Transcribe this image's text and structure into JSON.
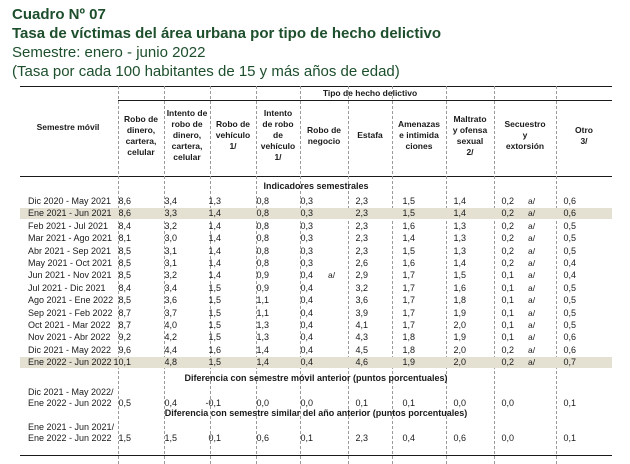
{
  "header": {
    "title": "Cuadro Nº 07",
    "subtitle": "Tasa de víctimas del área urbana por tipo de hecho delictivo",
    "semester": "Semestre: enero - junio 2022",
    "note": "(Tasa por cada 100 habitantes de 15 y más años de edad)"
  },
  "table": {
    "stub_header": "Semestre móvil",
    "group_header": "Tipo de hecho delictivo",
    "columns": [
      [
        "Robo de",
        "dinero,",
        "cartera,",
        "celular"
      ],
      [
        "Intento de",
        "robo de",
        "dinero,",
        "cartera,",
        "celular"
      ],
      [
        "Robo de",
        "vehículo",
        "1/"
      ],
      [
        "Intento",
        "de robo",
        "de",
        "vehículo",
        "1/"
      ],
      [
        "Robo de",
        "negocio"
      ],
      [
        "Estafa"
      ],
      [
        "Amenazas",
        "e intimida",
        "ciones"
      ],
      [
        "Maltrato",
        "y ofensa",
        "sexual",
        "2/"
      ],
      [
        "Secuestro",
        "y",
        "extorsión"
      ],
      [
        "Otro",
        "3/"
      ]
    ],
    "section_indicators": "Indicadores semestrales",
    "rows": [
      {
        "label": "Dic 2020 - May 2021",
        "values": [
          "8,6",
          "3,4",
          "1,3",
          "0,8",
          "0,3",
          "2,3",
          "1,5",
          "1,4",
          "0,2",
          "0,6"
        ],
        "flags": {
          "8": "a/"
        }
      },
      {
        "label": "Ene 2021 - Jun 2021",
        "values": [
          "8,6",
          "3,3",
          "1,4",
          "0,8",
          "0,3",
          "2,3",
          "1,5",
          "1,4",
          "0,2",
          "0,6"
        ],
        "flags": {
          "8": "a/"
        }
      },
      {
        "label": "Feb 2021 - Jul 2021",
        "values": [
          "8,4",
          "3,2",
          "1,4",
          "0,8",
          "0,3",
          "2,3",
          "1,6",
          "1,3",
          "0,2",
          "0,5"
        ],
        "flags": {
          "8": "a/"
        }
      },
      {
        "label": "Mar 2021 - Ago 2021",
        "values": [
          "8,1",
          "3,0",
          "1,4",
          "0,8",
          "0,3",
          "2,3",
          "1,4",
          "1,3",
          "0,2",
          "0,5"
        ],
        "flags": {
          "8": "a/"
        }
      },
      {
        "label": "Abr 2021 - Sep 2021",
        "values": [
          "8,5",
          "3,1",
          "1,4",
          "0,8",
          "0,3",
          "2,3",
          "1,5",
          "1,3",
          "0,2",
          "0,5"
        ],
        "flags": {
          "8": "a/"
        }
      },
      {
        "label": "May 2021 - Oct 2021",
        "values": [
          "8,5",
          "3,1",
          "1,4",
          "0,8",
          "0,3",
          "2,6",
          "1,6",
          "1,4",
          "0,2",
          "0,4"
        ],
        "flags": {
          "8": "a/"
        }
      },
      {
        "label": "Jun 2021 - Nov 2021",
        "values": [
          "8,5",
          "3,2",
          "1,4",
          "0,9",
          "0,4",
          "2,9",
          "1,7",
          "1,5",
          "0,1",
          "0,4"
        ],
        "flags": {
          "4": "a/",
          "8": "a/"
        }
      },
      {
        "label": "Jul 2021 - Dic 2021",
        "values": [
          "8,4",
          "3,4",
          "1,5",
          "0,9",
          "0,4",
          "3,2",
          "1,7",
          "1,6",
          "0,1",
          "0,5"
        ],
        "flags": {
          "8": "a/"
        }
      },
      {
        "label": "Ago 2021 - Ene 2022",
        "values": [
          "8,5",
          "3,6",
          "1,5",
          "1,1",
          "0,4",
          "3,6",
          "1,7",
          "1,8",
          "0,1",
          "0,5"
        ],
        "flags": {
          "8": "a/"
        }
      },
      {
        "label": "Sep 2021 - Feb 2022",
        "values": [
          "8,7",
          "3,7",
          "1,5",
          "1,1",
          "0,4",
          "3,9",
          "1,7",
          "1,9",
          "0,1",
          "0,5"
        ],
        "flags": {
          "8": "a/"
        }
      },
      {
        "label": "Oct 2021 - Mar 2022",
        "values": [
          "8,7",
          "4,0",
          "1,5",
          "1,3",
          "0,4",
          "4,1",
          "1,7",
          "2,0",
          "0,1",
          "0,5"
        ],
        "flags": {
          "8": "a/"
        }
      },
      {
        "label": "Nov 2021 - Abr 2022",
        "values": [
          "9,2",
          "4,2",
          "1,5",
          "1,3",
          "0,4",
          "4,3",
          "1,8",
          "1,9",
          "0,1",
          "0,6"
        ],
        "flags": {
          "8": "a/"
        }
      },
      {
        "label": "Dic 2021 - May 2022",
        "values": [
          "9,6",
          "4,4",
          "1,6",
          "1,4",
          "0,4",
          "4,5",
          "1,8",
          "2,0",
          "0,2",
          "0,6"
        ],
        "flags": {
          "8": "a/"
        }
      },
      {
        "label": "Ene 2022 - Jun 2022",
        "values": [
          "10,1",
          "4,8",
          "1,5",
          "1,4",
          "0,4",
          "4,6",
          "1,9",
          "2,0",
          "0,2",
          "0,7"
        ],
        "flags": {
          "8": "a/"
        }
      }
    ],
    "section_diff_prev": "Diferencia con semestre móvil anterior (puntos porcentuales)",
    "diff_prev": {
      "label1": "Dic 2021 - May 2022/",
      "label2": "Ene 2022 - Jun 2022",
      "values": [
        "0,5",
        "0,4",
        "-0,1",
        "0,0",
        "0,0",
        "0,1",
        "0,1",
        "0,0",
        "0,0",
        "0,1"
      ]
    },
    "section_diff_year": "Diferencia con semestre similar del año anterior (puntos porcentuales)",
    "diff_year": {
      "label1": "Ene 2021 - Jun 2021/",
      "label2": "Ene 2022 - Jun 2022",
      "values": [
        "1,5",
        "1,5",
        "0,1",
        "0,6",
        "0,1",
        "2,3",
        "0,4",
        "0,6",
        "0,0",
        "0,1"
      ]
    }
  }
}
